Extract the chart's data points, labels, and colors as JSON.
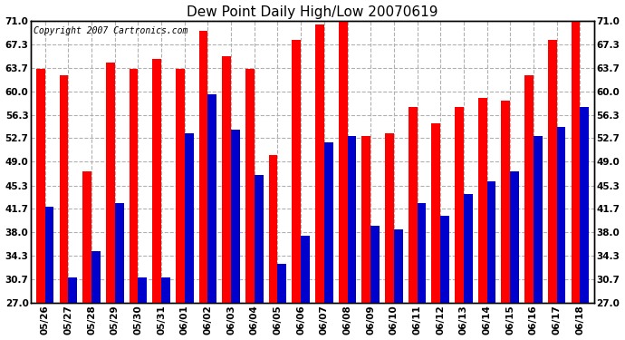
{
  "title": "Dew Point Daily High/Low 20070619",
  "copyright": "Copyright 2007 Cartronics.com",
  "dates": [
    "05/26",
    "05/27",
    "05/28",
    "05/29",
    "05/30",
    "05/31",
    "06/01",
    "06/02",
    "06/03",
    "06/04",
    "06/05",
    "06/06",
    "06/07",
    "06/08",
    "06/09",
    "06/10",
    "06/11",
    "06/12",
    "06/13",
    "06/14",
    "06/15",
    "06/16",
    "06/17",
    "06/18"
  ],
  "highs": [
    63.5,
    62.5,
    47.5,
    64.5,
    63.5,
    65.0,
    63.5,
    69.5,
    65.5,
    63.5,
    50.0,
    68.0,
    70.5,
    71.5,
    53.0,
    53.5,
    57.5,
    55.0,
    57.5,
    59.0,
    58.5,
    62.5,
    68.0,
    71.0
  ],
  "lows": [
    42.0,
    31.0,
    35.0,
    42.5,
    31.0,
    31.0,
    53.5,
    59.5,
    54.0,
    47.0,
    33.0,
    37.5,
    52.0,
    53.0,
    39.0,
    38.5,
    42.5,
    40.5,
    44.0,
    46.0,
    47.5,
    53.0,
    54.5,
    57.5
  ],
  "high_color": "#ff0000",
  "low_color": "#0000cc",
  "background_color": "#ffffff",
  "plot_background": "#ffffff",
  "grid_color": "#b0b0b0",
  "yticks": [
    27.0,
    30.7,
    34.3,
    38.0,
    41.7,
    45.3,
    49.0,
    52.7,
    56.3,
    60.0,
    63.7,
    67.3,
    71.0
  ],
  "ymin": 27.0,
  "ymax": 71.0,
  "bar_width": 0.38,
  "title_fontsize": 11,
  "tick_fontsize": 7.5,
  "copyright_fontsize": 7
}
